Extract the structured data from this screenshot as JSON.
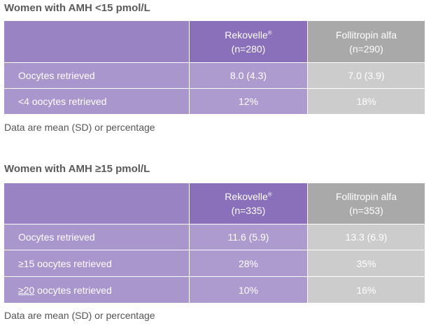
{
  "tables": [
    {
      "title": "Women with AMH <15 pmol/L",
      "columns": {
        "rekovelle": {
          "name": "Rekovelle",
          "mark": "®",
          "n": "(n=280)"
        },
        "follitropin": {
          "name": "Follitropin alfa",
          "n": "(n=290)"
        }
      },
      "rows": [
        {
          "label": "Oocytes retrieved",
          "rekovelle": "8.0 (4.3)",
          "follitropin": "7.0 (3.9)"
        },
        {
          "label": "<4 oocytes retrieved",
          "rekovelle": "12%",
          "follitropin": "18%"
        }
      ],
      "footnote": "Data are mean (SD) or percentage"
    },
    {
      "title": "Women with AMH ≥15 pmol/L",
      "columns": {
        "rekovelle": {
          "name": "Rekovelle",
          "mark": "®",
          "n": "(n=335)"
        },
        "follitropin": {
          "name": "Follitropin alfa",
          "n": "(n=353)"
        }
      },
      "rows": [
        {
          "label": "Oocytes retrieved",
          "rekovelle": "11.6 (5.9)",
          "follitropin": "13.3 (6.9)"
        },
        {
          "label": "≥15 oocytes retrieved",
          "rekovelle": "28%",
          "follitropin": "35%"
        },
        {
          "label_prefix": "≥20",
          "label_suffix": " oocytes retrieved",
          "rekovelle": "10%",
          "follitropin": "16%"
        }
      ],
      "footnote": "Data are mean (SD) or percentage"
    }
  ]
}
